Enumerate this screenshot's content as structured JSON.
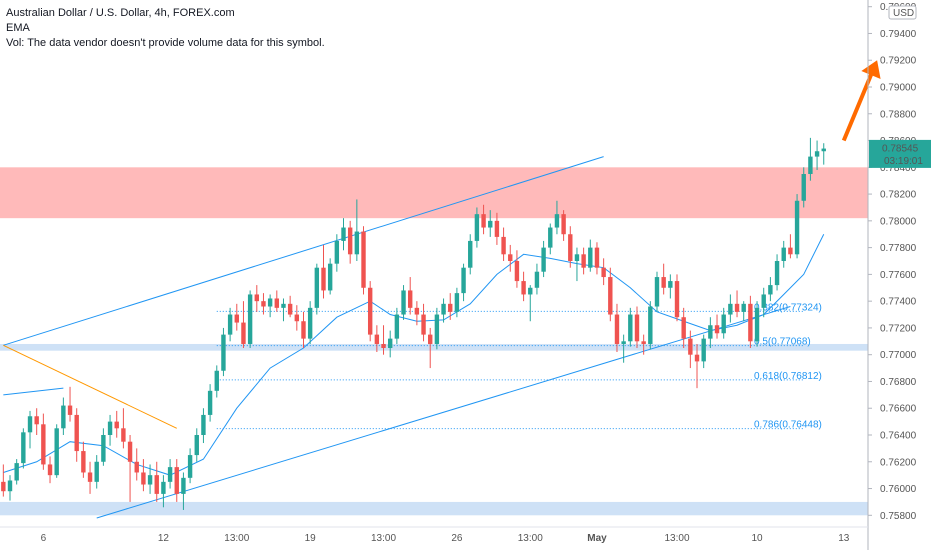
{
  "header": {
    "title": "Australian Dollar / U.S. Dollar, 4h, FOREX.com",
    "indicator": "EMA",
    "volume_note": "Vol: The data vendor doesn't provide volume data for this symbol."
  },
  "price_axis": {
    "currency": "USD",
    "last_price": "0.78545",
    "countdown": "03:19:01"
  },
  "colors": {
    "up": "#26a69a",
    "down": "#ef5350",
    "ema": "#2196f3",
    "zone_resistance": "#ffb3b3",
    "zone_support": "#c6dcf5",
    "fib": "#2196f3",
    "arrow": "#ff6a00",
    "downtrend": "#ff9800",
    "price_badge": "#26a69a"
  },
  "chart_data": {
    "type": "candlestick",
    "symbol": "AUDUSD",
    "timeframe": "4h",
    "ylim": [
      0.7575,
      0.7965
    ],
    "yticks": [
      0.796,
      0.794,
      0.792,
      0.79,
      0.788,
      0.786,
      0.784,
      0.782,
      0.78,
      0.778,
      0.776,
      0.774,
      0.772,
      0.77,
      0.768,
      0.766,
      0.764,
      0.762,
      0.76,
      0.758
    ],
    "ytick_labels": [
      "0.79600",
      "0.79400",
      "0.79200",
      "0.79000",
      "0.78800",
      "0.78600",
      "0.78400",
      "0.78200",
      "0.78000",
      "0.77800",
      "0.77600",
      "0.77400",
      "0.77200",
      "0.77000",
      "0.76800",
      "0.76600",
      "0.76400",
      "0.76200",
      "0.76000",
      "0.75800"
    ],
    "xticks": [
      {
        "label": "6",
        "bar": 6
      },
      {
        "label": "12",
        "bar": 24
      },
      {
        "label": "13:00",
        "bar": 35
      },
      {
        "label": "19",
        "bar": 46
      },
      {
        "label": "13:00",
        "bar": 57
      },
      {
        "label": "26",
        "bar": 68
      },
      {
        "label": "13:00",
        "bar": 79
      },
      {
        "label": "May",
        "bar": 89
      },
      {
        "label": "13:00",
        "bar": 101
      },
      {
        "label": "10",
        "bar": 113
      },
      {
        "label": "13",
        "bar": 126
      }
    ],
    "candles": [
      [
        0.7605,
        0.7618,
        0.7594,
        0.7598
      ],
      [
        0.7598,
        0.761,
        0.7591,
        0.7606
      ],
      [
        0.7606,
        0.7622,
        0.7603,
        0.7619
      ],
      [
        0.7619,
        0.7645,
        0.7615,
        0.7642
      ],
      [
        0.7642,
        0.7658,
        0.763,
        0.7654
      ],
      [
        0.7654,
        0.766,
        0.764,
        0.7648
      ],
      [
        0.7648,
        0.7656,
        0.7614,
        0.7618
      ],
      [
        0.7618,
        0.7624,
        0.7604,
        0.761
      ],
      [
        0.761,
        0.7648,
        0.7608,
        0.7645
      ],
      [
        0.7645,
        0.7668,
        0.764,
        0.7662
      ],
      [
        0.7662,
        0.7676,
        0.765,
        0.7655
      ],
      [
        0.7655,
        0.766,
        0.762,
        0.7628
      ],
      [
        0.7628,
        0.7635,
        0.7608,
        0.7612
      ],
      [
        0.7612,
        0.762,
        0.7596,
        0.7605
      ],
      [
        0.7605,
        0.7625,
        0.76,
        0.762
      ],
      [
        0.762,
        0.7645,
        0.7617,
        0.764
      ],
      [
        0.764,
        0.7655,
        0.7632,
        0.765
      ],
      [
        0.765,
        0.7658,
        0.7638,
        0.7645
      ],
      [
        0.7645,
        0.766,
        0.763,
        0.7635
      ],
      [
        0.7635,
        0.764,
        0.759,
        0.762
      ],
      [
        0.762,
        0.763,
        0.7606,
        0.7612
      ],
      [
        0.7612,
        0.7622,
        0.7598,
        0.7603
      ],
      [
        0.7603,
        0.7618,
        0.7596,
        0.761
      ],
      [
        0.761,
        0.762,
        0.759,
        0.7596
      ],
      [
        0.7596,
        0.761,
        0.7586,
        0.7605
      ],
      [
        0.7605,
        0.7622,
        0.76,
        0.7616
      ],
      [
        0.7616,
        0.7622,
        0.759,
        0.7596
      ],
      [
        0.7596,
        0.7612,
        0.7584,
        0.7608
      ],
      [
        0.7608,
        0.763,
        0.7604,
        0.7625
      ],
      [
        0.7625,
        0.7645,
        0.762,
        0.764
      ],
      [
        0.764,
        0.766,
        0.7634,
        0.7655
      ],
      [
        0.7655,
        0.7678,
        0.765,
        0.7673
      ],
      [
        0.7673,
        0.7692,
        0.7668,
        0.7688
      ],
      [
        0.7688,
        0.772,
        0.7684,
        0.7715
      ],
      [
        0.7715,
        0.7735,
        0.771,
        0.773
      ],
      [
        0.773,
        0.7738,
        0.7718,
        0.7724
      ],
      [
        0.7724,
        0.774,
        0.7705,
        0.7708
      ],
      [
        0.7708,
        0.7748,
        0.7705,
        0.7745
      ],
      [
        0.7745,
        0.7752,
        0.7732,
        0.774
      ],
      [
        0.774,
        0.7746,
        0.773,
        0.7736
      ],
      [
        0.7736,
        0.7745,
        0.7728,
        0.7742
      ],
      [
        0.7742,
        0.7748,
        0.7732,
        0.7735
      ],
      [
        0.7735,
        0.7742,
        0.7725,
        0.7738
      ],
      [
        0.7738,
        0.7744,
        0.7728,
        0.773
      ],
      [
        0.773,
        0.7737,
        0.7718,
        0.7725
      ],
      [
        0.7725,
        0.7732,
        0.7705,
        0.7712
      ],
      [
        0.7712,
        0.774,
        0.7708,
        0.7735
      ],
      [
        0.7735,
        0.7768,
        0.773,
        0.7765
      ],
      [
        0.7765,
        0.7782,
        0.7742,
        0.7748
      ],
      [
        0.7748,
        0.7772,
        0.7745,
        0.7768
      ],
      [
        0.7768,
        0.779,
        0.7762,
        0.7785
      ],
      [
        0.7785,
        0.7802,
        0.7778,
        0.7795
      ],
      [
        0.7795,
        0.78,
        0.7768,
        0.7775
      ],
      [
        0.7775,
        0.7816,
        0.777,
        0.7792
      ],
      [
        0.7792,
        0.7796,
        0.7745,
        0.775
      ],
      [
        0.775,
        0.7755,
        0.771,
        0.7715
      ],
      [
        0.7715,
        0.7722,
        0.7702,
        0.7708
      ],
      [
        0.7708,
        0.7722,
        0.77,
        0.7705
      ],
      [
        0.7705,
        0.7718,
        0.7698,
        0.7712
      ],
      [
        0.7712,
        0.7735,
        0.7708,
        0.773
      ],
      [
        0.773,
        0.7752,
        0.7726,
        0.7748
      ],
      [
        0.7748,
        0.7758,
        0.773,
        0.7735
      ],
      [
        0.7735,
        0.774,
        0.7722,
        0.773
      ],
      [
        0.773,
        0.7738,
        0.771,
        0.7715
      ],
      [
        0.7715,
        0.772,
        0.769,
        0.7708
      ],
      [
        0.7708,
        0.7735,
        0.7704,
        0.773
      ],
      [
        0.773,
        0.7742,
        0.7724,
        0.7738
      ],
      [
        0.7738,
        0.7746,
        0.7726,
        0.7732
      ],
      [
        0.7732,
        0.775,
        0.7728,
        0.7746
      ],
      [
        0.7746,
        0.7768,
        0.774,
        0.7765
      ],
      [
        0.7765,
        0.779,
        0.776,
        0.7785
      ],
      [
        0.7785,
        0.781,
        0.778,
        0.7805
      ],
      [
        0.7805,
        0.7812,
        0.779,
        0.7795
      ],
      [
        0.7795,
        0.7808,
        0.7788,
        0.78
      ],
      [
        0.78,
        0.7806,
        0.7782,
        0.7788
      ],
      [
        0.7788,
        0.7795,
        0.777,
        0.7775
      ],
      [
        0.7775,
        0.7782,
        0.7762,
        0.777
      ],
      [
        0.777,
        0.7778,
        0.775,
        0.7755
      ],
      [
        0.7755,
        0.7762,
        0.774,
        0.7745
      ],
      [
        0.7745,
        0.7752,
        0.7725,
        0.775
      ],
      [
        0.775,
        0.7768,
        0.7745,
        0.7762
      ],
      [
        0.7762,
        0.7785,
        0.7758,
        0.778
      ],
      [
        0.778,
        0.7798,
        0.7775,
        0.7795
      ],
      [
        0.7795,
        0.7815,
        0.779,
        0.7805
      ],
      [
        0.7805,
        0.7808,
        0.7785,
        0.779
      ],
      [
        0.779,
        0.7796,
        0.7765,
        0.777
      ],
      [
        0.777,
        0.778,
        0.7755,
        0.7775
      ],
      [
        0.7775,
        0.778,
        0.776,
        0.7765
      ],
      [
        0.7765,
        0.7786,
        0.7762,
        0.778
      ],
      [
        0.778,
        0.7784,
        0.776,
        0.7765
      ],
      [
        0.7765,
        0.7772,
        0.7752,
        0.7758
      ],
      [
        0.7758,
        0.7765,
        0.7725,
        0.773
      ],
      [
        0.773,
        0.7738,
        0.7702,
        0.7708
      ],
      [
        0.7708,
        0.7715,
        0.7694,
        0.771
      ],
      [
        0.771,
        0.7735,
        0.7706,
        0.773
      ],
      [
        0.773,
        0.7736,
        0.7705,
        0.771
      ],
      [
        0.771,
        0.7715,
        0.77,
        0.7708
      ],
      [
        0.7708,
        0.774,
        0.7704,
        0.7736
      ],
      [
        0.7736,
        0.7762,
        0.7732,
        0.7758
      ],
      [
        0.7758,
        0.7768,
        0.7745,
        0.775
      ],
      [
        0.775,
        0.776,
        0.7742,
        0.7755
      ],
      [
        0.7755,
        0.776,
        0.7725,
        0.7728
      ],
      [
        0.7728,
        0.7735,
        0.7705,
        0.7712
      ],
      [
        0.7712,
        0.7718,
        0.769,
        0.77
      ],
      [
        0.77,
        0.7708,
        0.7675,
        0.7695
      ],
      [
        0.7695,
        0.7715,
        0.769,
        0.7712
      ],
      [
        0.7712,
        0.7728,
        0.7705,
        0.7722
      ],
      [
        0.7722,
        0.773,
        0.7712,
        0.7716
      ],
      [
        0.7716,
        0.7735,
        0.7712,
        0.773
      ],
      [
        0.773,
        0.7745,
        0.7724,
        0.7738
      ],
      [
        0.7738,
        0.7748,
        0.7728,
        0.7732
      ],
      [
        0.7732,
        0.774,
        0.7725,
        0.7738
      ],
      [
        0.7738,
        0.7744,
        0.7705,
        0.771
      ],
      [
        0.771,
        0.774,
        0.7706,
        0.7735
      ],
      [
        0.7735,
        0.775,
        0.7728,
        0.7745
      ],
      [
        0.7745,
        0.7758,
        0.774,
        0.7752
      ],
      [
        0.7752,
        0.7775,
        0.7748,
        0.777
      ],
      [
        0.777,
        0.7785,
        0.7765,
        0.778
      ],
      [
        0.778,
        0.779,
        0.7772,
        0.7775
      ],
      [
        0.7775,
        0.782,
        0.7772,
        0.7815
      ],
      [
        0.7815,
        0.784,
        0.781,
        0.7835
      ],
      [
        0.7835,
        0.7862,
        0.783,
        0.7848
      ],
      [
        0.7848,
        0.786,
        0.7838,
        0.7852
      ],
      [
        0.7852,
        0.7858,
        0.7842,
        0.7854
      ]
    ],
    "ema": [
      [
        0,
        0.7612
      ],
      [
        5,
        0.762
      ],
      [
        10,
        0.7635
      ],
      [
        15,
        0.7632
      ],
      [
        20,
        0.7618
      ],
      [
        25,
        0.761
      ],
      [
        30,
        0.7622
      ],
      [
        35,
        0.766
      ],
      [
        40,
        0.769
      ],
      [
        45,
        0.7705
      ],
      [
        50,
        0.7728
      ],
      [
        55,
        0.774
      ],
      [
        58,
        0.773
      ],
      [
        62,
        0.7725
      ],
      [
        66,
        0.7726
      ],
      [
        70,
        0.7738
      ],
      [
        74,
        0.776
      ],
      [
        78,
        0.7775
      ],
      [
        82,
        0.7772
      ],
      [
        86,
        0.7768
      ],
      [
        90,
        0.7765
      ],
      [
        94,
        0.775
      ],
      [
        98,
        0.7732
      ],
      [
        102,
        0.7725
      ],
      [
        106,
        0.7718
      ],
      [
        110,
        0.7722
      ],
      [
        114,
        0.773
      ],
      [
        117,
        0.7745
      ],
      [
        120,
        0.776
      ],
      [
        123,
        0.779
      ]
    ],
    "zones": [
      {
        "name": "resistance",
        "from": 0.7802,
        "to": 0.784
      },
      {
        "name": "support",
        "from": 0.7703,
        "to": 0.7708
      },
      {
        "name": "support-low",
        "from": 0.758,
        "to": 0.759
      }
    ],
    "trendlines": [
      {
        "name": "channel-upper",
        "from": [
          0,
          0.7707
        ],
        "to": [
          90,
          0.7848
        ]
      },
      {
        "name": "channel-lower",
        "from": [
          14,
          0.7578
        ],
        "to": [
          118,
          0.7736
        ]
      },
      {
        "name": "downtrend",
        "from": [
          0,
          0.7707
        ],
        "to": [
          26,
          0.7645
        ]
      },
      {
        "name": "short-line",
        "from": [
          0,
          0.767
        ],
        "to": [
          9,
          0.7675
        ]
      }
    ],
    "fibonacci": [
      {
        "level": 0.382,
        "value": 0.77324,
        "label": "0.382(0.77324)"
      },
      {
        "level": 0.5,
        "value": 0.77068,
        "label": "0.5(0.77068)"
      },
      {
        "level": 0.618,
        "value": 0.76812,
        "label": "0.618(0.76812)"
      },
      {
        "level": 0.786,
        "value": 0.76448,
        "label": "0.786(0.76448)"
      }
    ],
    "fib_span": [
      32,
      120
    ],
    "projection_arrow": {
      "from": [
        126,
        0.786
      ],
      "to": [
        131,
        0.792
      ]
    }
  }
}
